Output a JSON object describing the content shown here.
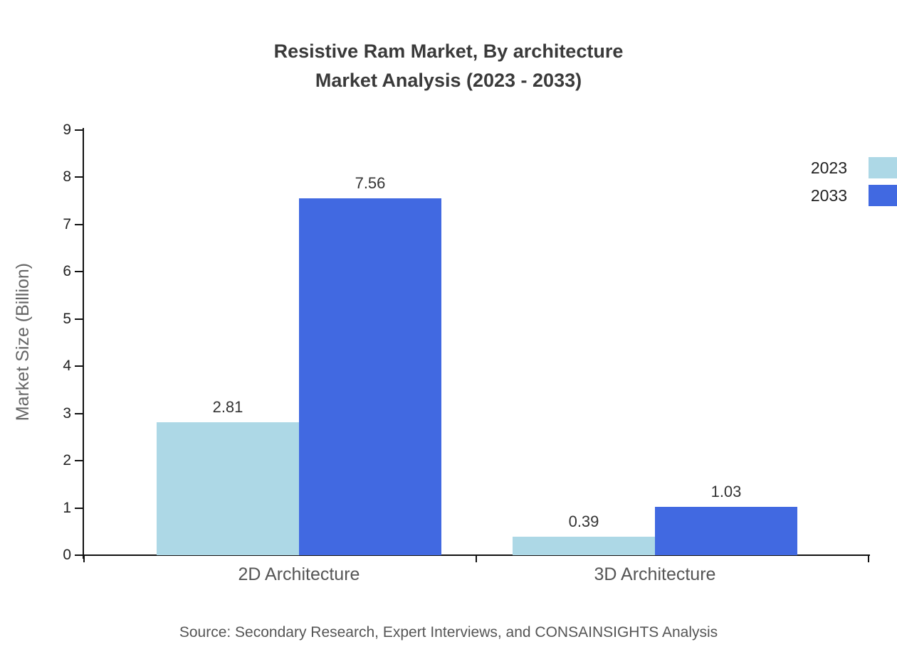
{
  "title": {
    "line1": "Resistive Ram Market, By architecture",
    "line2": "Market Analysis (2023 - 2033)"
  },
  "chart_data": {
    "type": "bar",
    "title": "Resistive Ram Market, By architecture Market Analysis (2023 - 2033)",
    "categories": [
      "2D Architecture",
      "3D Architecture"
    ],
    "series": [
      {
        "name": "2023",
        "color": "#ADD8E6",
        "values": [
          2.81,
          0.39
        ]
      },
      {
        "name": "2033",
        "color": "#4169E1",
        "values": [
          7.56,
          1.03
        ]
      }
    ],
    "xlabel": "",
    "ylabel": "Market Size (Billion)",
    "ylim": [
      0,
      9
    ],
    "yticks": [
      0,
      1,
      2,
      3,
      4,
      5,
      6,
      7,
      8,
      9
    ],
    "grid": false,
    "legend_position": "top-right",
    "value_labels": true
  },
  "source": "Source: Secondary Research, Expert Interviews, and CONSAINSIGHTS Analysis"
}
